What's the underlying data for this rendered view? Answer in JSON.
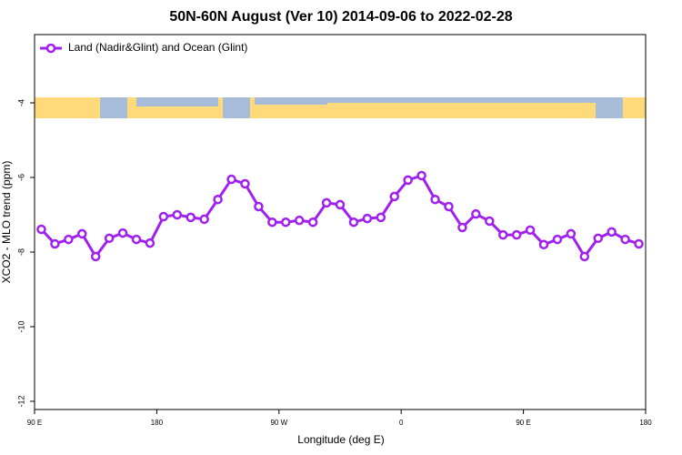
{
  "chart_data": {
    "type": "line",
    "title": "50N-60N August (Ver 10)   2014-09-06 to 2022-02-28",
    "x_label": "Longitude (deg E)",
    "y_label": "XCO2 - MLO trend (ppm)",
    "x": [
      95,
      105,
      115,
      125,
      135,
      145,
      155,
      165,
      175,
      185,
      195,
      205,
      215,
      225,
      235,
      245,
      255,
      265,
      275,
      285,
      295,
      305,
      315,
      325,
      335,
      345,
      355,
      365,
      375,
      385,
      395,
      405,
      415,
      425,
      435,
      445,
      455,
      465,
      475,
      485,
      495,
      505,
      515,
      525,
      535
    ],
    "series": [
      {
        "name": "Land (Nadir&Glint) and Ocean (Glint)",
        "color": "#a020f0",
        "values": [
          -7.39,
          -7.78,
          -7.66,
          -7.51,
          -8.12,
          -7.63,
          -7.49,
          -7.66,
          -7.76,
          -7.05,
          -7.0,
          -7.07,
          -7.12,
          -6.59,
          -6.05,
          -6.17,
          -6.78,
          -7.2,
          -7.2,
          -7.15,
          -7.2,
          -6.68,
          -6.73,
          -7.2,
          -7.1,
          -7.07,
          -6.51,
          -6.07,
          -5.95,
          -6.59,
          -6.78,
          -7.34,
          -6.98,
          -7.17,
          -7.54,
          -7.54,
          -7.41,
          -7.8,
          -7.66,
          -7.51,
          -8.12,
          -7.63,
          -7.46,
          -7.66,
          -7.78
        ]
      }
    ],
    "xlim": [
      90,
      540
    ],
    "xticks": [
      {
        "value": 90,
        "label": "90 E"
      },
      180,
      {
        "value": 270,
        "label": "90 W"
      },
      {
        "value": 360,
        "label": "0"
      },
      {
        "value": 450,
        "label": "90 E"
      },
      {
        "value": 540,
        "label": "180"
      }
    ],
    "ylim": [
      -12.22,
      -2.17
    ],
    "yticks": [
      -4,
      -6,
      -8,
      -10,
      -12
    ],
    "legend": "top-left"
  }
}
